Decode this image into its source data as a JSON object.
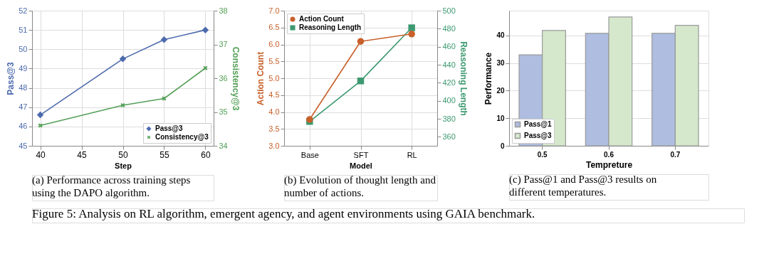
{
  "chart_data": [
    {
      "type": "line",
      "xlabel": "Step",
      "ylabel": "Pass@3",
      "y2label": "Consistency@3",
      "x": [
        40,
        50,
        55,
        60
      ],
      "xlim": [
        39,
        61
      ],
      "xticks": [
        40,
        45,
        50,
        55,
        60
      ],
      "ylim": [
        45,
        52
      ],
      "yticks": [
        45,
        46,
        47,
        48,
        49,
        50,
        51,
        52
      ],
      "y2lim": [
        34,
        38
      ],
      "y2ticks": [
        34,
        35,
        36,
        37,
        38
      ],
      "grid": true,
      "legend": "bottom right",
      "series": [
        {
          "name": "Pass@3",
          "color": "#4c6aad",
          "marker": "diamond",
          "values": [
            46.6,
            49.5,
            50.5,
            51.0
          ]
        },
        {
          "name": "Consistency@3",
          "color": "#55a058",
          "marker": "cross",
          "axis": "y2",
          "values": [
            34.6,
            35.2,
            35.4,
            36.3
          ]
        }
      ],
      "annotations": [
        "(a) Performance across training steps using the DAPO algorithm.",
        "Figure 5: Analysis on RL algorithm, emergent agency, and agent environments using GAIA benchmark."
      ]
    },
    {
      "type": "line",
      "xlabel": "Model",
      "ylabel": "Action Count",
      "y2label": "Reasoning Length",
      "categories": [
        "Base",
        "SFT",
        "RL"
      ],
      "ylim": [
        3.0,
        7.0
      ],
      "yticks": [
        {
          "value": 3.0,
          "label": "3.0"
        },
        {
          "value": 3.5,
          "label": "3.5"
        },
        {
          "value": 4.0,
          "label": "4.0"
        },
        {
          "value": 4.5,
          "label": "4.5"
        },
        {
          "value": 5.0,
          "label": "5.0"
        },
        {
          "value": 5.5,
          "label": "5.5"
        },
        {
          "value": 6.0,
          "label": "6.0"
        },
        {
          "value": 6.5,
          "label": "6.5"
        },
        {
          "value": 7.0,
          "label": "7.0"
        }
      ],
      "y2lim": [
        350,
        500
      ],
      "y2ticks": [
        360,
        380,
        400,
        420,
        440,
        460,
        480,
        500
      ],
      "grid": true,
      "legend": "top left",
      "series": [
        {
          "name": "Action Count",
          "color": "#c8602a",
          "marker": "circle",
          "values": [
            3.78,
            6.09,
            6.31
          ]
        },
        {
          "name": "Reasoning Length",
          "color": "#3d9970",
          "marker": "square",
          "axis": "y2",
          "values": [
            377,
            422,
            481
          ]
        }
      ],
      "annotations": [
        "(b) Evolution of thought length and number of actions."
      ]
    },
    {
      "type": "bar",
      "xlabel": "Tempreture",
      "ylabel": "Performance",
      "categories": [
        "0.5",
        "0.6",
        "0.7"
      ],
      "ylim": [
        0,
        49
      ],
      "yticks": [
        0,
        10,
        20,
        30,
        40
      ],
      "grid": "y",
      "legend": "bottom left",
      "series": [
        {
          "name": "Pass@1",
          "color": "#aebde0",
          "values": [
            33.0,
            40.8,
            40.8
          ]
        },
        {
          "name": "Pass@3",
          "color": "#d5e8cc",
          "values": [
            41.8,
            46.7,
            43.7
          ]
        }
      ],
      "annotations": [
        "(c) Pass@1 and Pass@3 results on different temperatures."
      ]
    }
  ]
}
